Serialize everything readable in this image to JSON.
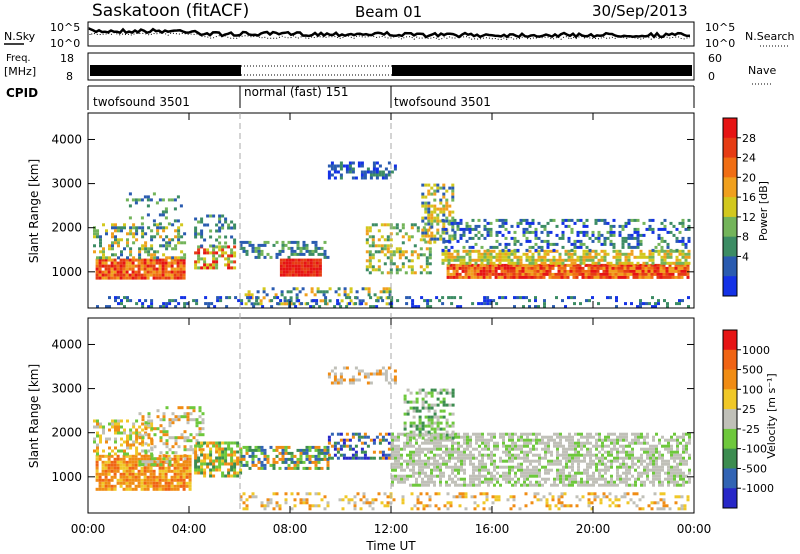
{
  "header": {
    "station": "Saskatoon (fitACF)",
    "beam": "Beam 01",
    "date": "30/Sep/2013"
  },
  "noise_panel": {
    "left_label": "N.Sky",
    "right_label": "N.Search",
    "ticks_left": [
      "10^5",
      "10^0"
    ],
    "ticks_right": [
      "10^5",
      "10^0"
    ]
  },
  "freq_panel": {
    "left_label_1": "Freq.",
    "left_label_2": "[MHz]",
    "right_label": "Nave",
    "ticks_left": [
      "18",
      "8"
    ],
    "ticks_right": [
      "60",
      "0"
    ]
  },
  "cpid_panel": {
    "label": "CPID",
    "modes": [
      {
        "name": "twofsound 3501",
        "start": "00:00",
        "end": "06:00"
      },
      {
        "name": "normal (fast) 151",
        "start": "06:00",
        "end": "12:00"
      },
      {
        "name": "twofsound 3501",
        "start": "12:00",
        "end": "24:00"
      }
    ]
  },
  "power_panel": {
    "ylabel": "Slant Range [km]",
    "yticks": [
      "4000",
      "3000",
      "2000",
      "1000"
    ],
    "colorbar_label": "Power [dB]",
    "colorbar_ticks": [
      "28",
      "24",
      "20",
      "16",
      "12",
      "8",
      "4"
    ],
    "colors": [
      "#1432e6",
      "#2a5bb0",
      "#3c8c64",
      "#73b45a",
      "#d2c81e",
      "#f0a01e",
      "#f06e14",
      "#e63c14",
      "#e61414"
    ]
  },
  "velocity_panel": {
    "ylabel": "Slant Range [km]",
    "yticks": [
      "4000",
      "3000",
      "2000",
      "1000"
    ],
    "colorbar_label": "Velocity [m s⁻¹]",
    "colorbar_ticks": [
      "1000",
      "500",
      "100",
      "25",
      "-25",
      "-100",
      "-500",
      "-1000"
    ],
    "colors": [
      "#2828c8",
      "#3264b4",
      "#3c8c50",
      "#6ec83c",
      "#c0c0b8",
      "#f0c828",
      "#f08c14",
      "#f06414",
      "#e61414"
    ]
  },
  "xaxis": {
    "label": "Time UT",
    "ticks": [
      "00:00",
      "04:00",
      "08:00",
      "12:00",
      "16:00",
      "20:00",
      "00:00"
    ]
  },
  "chart_data": [
    {
      "type": "heatmap",
      "quantity": "Power",
      "unit": "dB",
      "x_range": [
        0,
        24
      ],
      "y_range_km": [
        180,
        4600
      ],
      "color_range": [
        0,
        30
      ],
      "description_bands": [
        {
          "t_start": 0.5,
          "t_end": 3.5,
          "range_km": [
            900,
            1200
          ],
          "power_db": 26
        },
        {
          "t_start": 4.5,
          "t_end": 5.5,
          "range_km": [
            1100,
            1500
          ],
          "power_db": 26
        },
        {
          "t_start": 7.6,
          "t_end": 9.2,
          "range_km": [
            950,
            1300
          ],
          "power_db": 28
        },
        {
          "t_start": 14.2,
          "t_end": 23.8,
          "range_km": [
            900,
            1150
          ],
          "power_db": 24
        }
      ]
    },
    {
      "type": "heatmap",
      "quantity": "Velocity",
      "unit": "m s-1",
      "x_range": [
        0,
        24
      ],
      "y_range_km": [
        180,
        4600
      ],
      "color_range": [
        -1000,
        1000
      ]
    }
  ]
}
